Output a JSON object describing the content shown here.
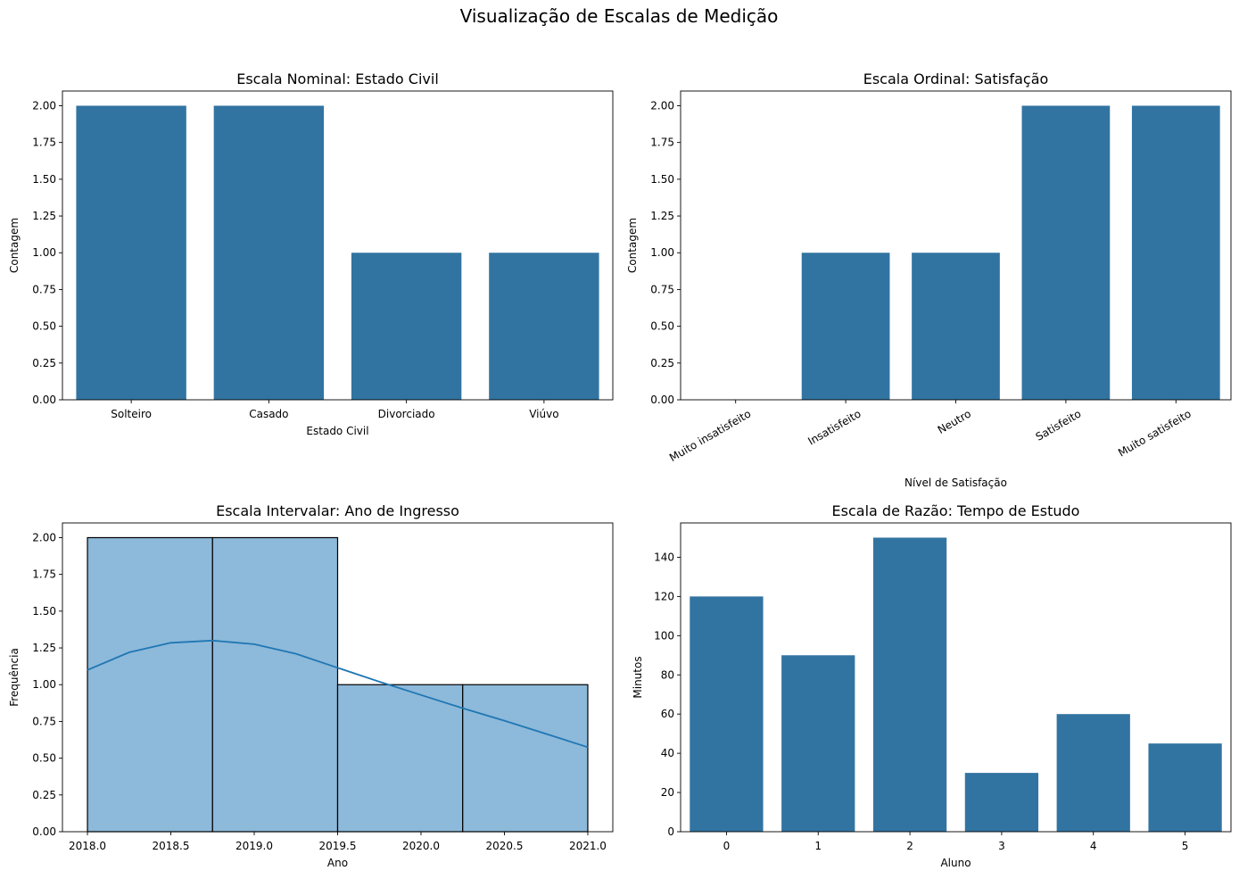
{
  "figure": {
    "title": "Visualização de Escalas de Medição"
  },
  "colors": {
    "bar": "#3274a1",
    "hist_fill": "#8db9da",
    "hist_edge": "#000000",
    "kde_line": "#1f77b4",
    "axes_edge": "#000000",
    "background": "#ffffff"
  },
  "chart_data": [
    {
      "type": "bar",
      "title": "Escala Nominal: Estado Civil",
      "xlabel": "Estado Civil",
      "ylabel": "Contagem",
      "categories": [
        "Solteiro",
        "Casado",
        "Divorciado",
        "Viúvo"
      ],
      "values": [
        2,
        2,
        1,
        1
      ],
      "ylim": [
        0,
        2.1
      ],
      "yticks": [
        "0.00",
        "0.25",
        "0.50",
        "0.75",
        "1.00",
        "1.25",
        "1.50",
        "1.75",
        "2.00"
      ],
      "grid": false
    },
    {
      "type": "bar",
      "title": "Escala Ordinal: Satisfação",
      "xlabel": "Nível de Satisfação",
      "ylabel": "Contagem",
      "categories": [
        "Muito insatisfeito",
        "Insatisfeito",
        "Neutro",
        "Satisfeito",
        "Muito satisfeito"
      ],
      "values": [
        0,
        1,
        1,
        2,
        2
      ],
      "ylim": [
        0,
        2.1
      ],
      "yticks": [
        "0.00",
        "0.25",
        "0.50",
        "0.75",
        "1.00",
        "1.25",
        "1.50",
        "1.75",
        "2.00"
      ],
      "xtick_rotation": 30,
      "grid": false
    },
    {
      "type": "histogram",
      "title": "Escala Intervalar: Ano de Ingresso",
      "xlabel": "Ano",
      "ylabel": "Frequência",
      "bins": [
        {
          "start": 2018.0,
          "end": 2018.75,
          "count": 2
        },
        {
          "start": 2018.75,
          "end": 2019.5,
          "count": 2
        },
        {
          "start": 2019.5,
          "end": 2020.25,
          "count": 1
        },
        {
          "start": 2020.25,
          "end": 2021.0,
          "count": 1
        }
      ],
      "kde": {
        "x": [
          2018.0,
          2018.25,
          2018.5,
          2018.75,
          2019.0,
          2019.25,
          2019.5,
          2019.75,
          2020.0,
          2020.25,
          2020.5,
          2020.75,
          2021.0
        ],
        "y": [
          1.1,
          1.22,
          1.285,
          1.3,
          1.275,
          1.21,
          1.115,
          1.02,
          0.93,
          0.84,
          0.755,
          0.665,
          0.575
        ]
      },
      "xlim": [
        2017.85,
        2021.15
      ],
      "ylim": [
        0,
        2.1
      ],
      "xticks": [
        "2018.0",
        "2018.5",
        "2019.0",
        "2019.5",
        "2020.0",
        "2020.5",
        "2021.0"
      ],
      "yticks": [
        "0.00",
        "0.25",
        "0.50",
        "0.75",
        "1.00",
        "1.25",
        "1.50",
        "1.75",
        "2.00"
      ],
      "grid": false
    },
    {
      "type": "bar",
      "title": "Escala de Razão: Tempo de Estudo",
      "xlabel": "Aluno",
      "ylabel": "Minutos",
      "categories": [
        "0",
        "1",
        "2",
        "3",
        "4",
        "5"
      ],
      "values": [
        120,
        90,
        150,
        30,
        60,
        45
      ],
      "ylim": [
        0,
        157.5
      ],
      "yticks": [
        "0",
        "20",
        "40",
        "60",
        "80",
        "100",
        "120",
        "140"
      ],
      "grid": false
    }
  ]
}
